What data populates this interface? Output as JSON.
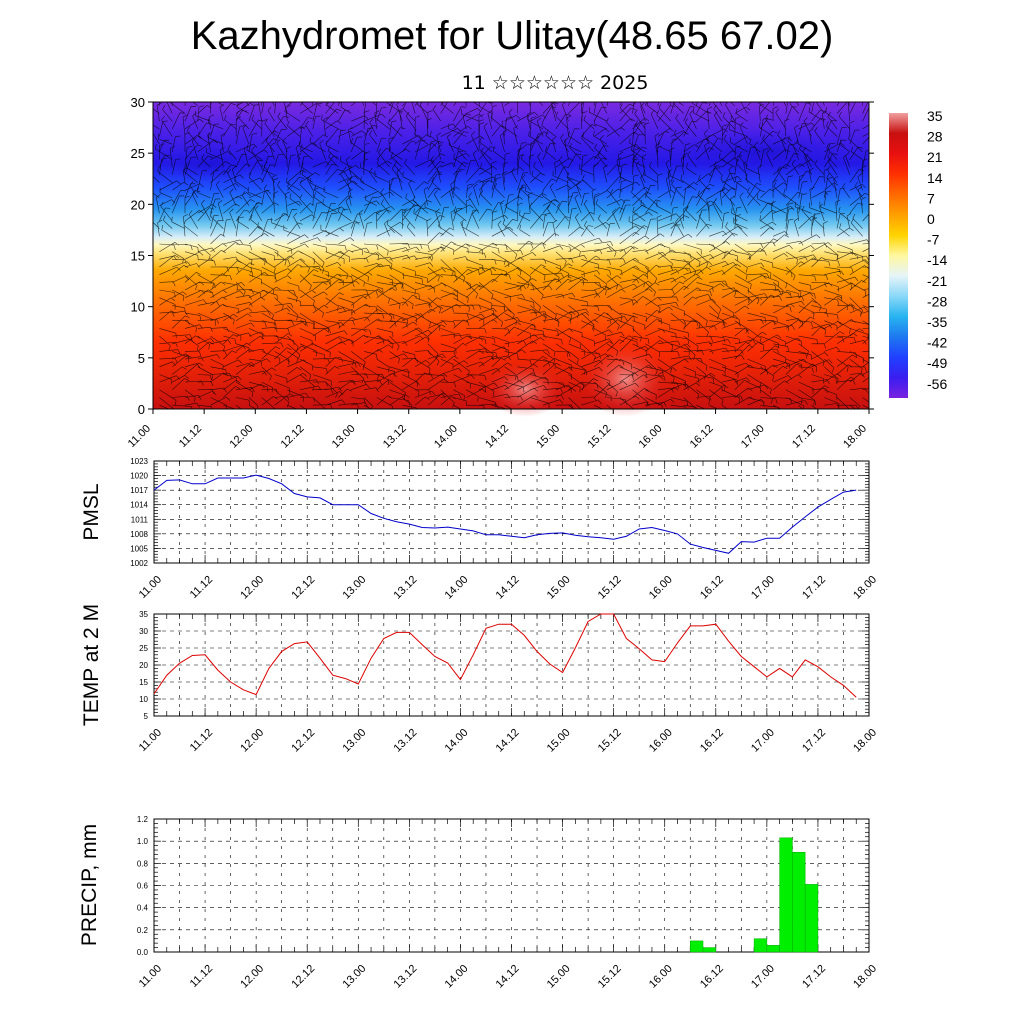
{
  "header": {
    "title": "Kazhydromet for Ulitay(48.65 67.02)",
    "subtitle": "11 ☆☆☆☆☆☆ 2025"
  },
  "colors": {
    "pmsl_line": "#0000cc",
    "temp_line": "#dd0000",
    "precip_bar": "#00ee00",
    "precip_bar_edge": "#00aa00",
    "grid": "#000000"
  },
  "chart_data": [
    {
      "type": "heatmap",
      "name": "cross-section",
      "x_ticks": [
        "11.00",
        "11.12",
        "12.00",
        "12.12",
        "13.00",
        "13.12",
        "14.00",
        "14.12",
        "15.00",
        "15.12",
        "16.00",
        "16.12",
        "17.00",
        "17.12",
        "18.00"
      ],
      "y_ticks": [
        0,
        5,
        10,
        15,
        20,
        25,
        30
      ],
      "ylim": [
        0,
        30
      ],
      "colorbar_labels": [
        "35",
        "28",
        "21",
        "14",
        "7",
        "0",
        "-7",
        "-14",
        "-21",
        "-28",
        "-35",
        "-42",
        "-49",
        "-56"
      ],
      "colormap": [
        "#7a20e0",
        "#3a1ef0",
        "#2040ff",
        "#1e78f0",
        "#28b4f0",
        "#8ad8f8",
        "#e6f4f8",
        "#fff8a0",
        "#ffd400",
        "#ffa000",
        "#ff6a00",
        "#ff3000",
        "#e81010",
        "#c81010",
        "#f0a0a0"
      ]
    },
    {
      "type": "line",
      "name": "pmsl",
      "ylabel": "PMSL",
      "ylim": [
        1002,
        1023
      ],
      "y_ticks": [
        1002,
        1005,
        1008,
        1011,
        1014,
        1017,
        1020,
        1023
      ],
      "x_ticks": [
        "11.00",
        "11.12",
        "12.00",
        "12.12",
        "13.00",
        "13.12",
        "14.00",
        "14.12",
        "15.00",
        "15.12",
        "16.00",
        "16.12",
        "17.00",
        "17.12",
        "18.00"
      ],
      "x_range_hours": [
        0,
        168
      ],
      "x": [
        0,
        3,
        6,
        9,
        12,
        15,
        18,
        21,
        24,
        27,
        30,
        33,
        36,
        39,
        42,
        45,
        48,
        51,
        54,
        57,
        60,
        63,
        66,
        69,
        72,
        75,
        78,
        81,
        84,
        87,
        90,
        93,
        96,
        99,
        102,
        105,
        108,
        111,
        114,
        117,
        120,
        123,
        126,
        129,
        132,
        135,
        138,
        141,
        144,
        147,
        150,
        153,
        156,
        159,
        162,
        165
      ],
      "values": [
        1017,
        1019,
        1019.1,
        1018.3,
        1018.3,
        1019.5,
        1019.5,
        1019.5,
        1020.1,
        1019.4,
        1018.3,
        1016.3,
        1015.6,
        1015.4,
        1014,
        1014,
        1014,
        1012.2,
        1011.2,
        1010.5,
        1010,
        1009.3,
        1009.2,
        1009.4,
        1009,
        1008.6,
        1007.8,
        1007.8,
        1007.5,
        1007.2,
        1007.8,
        1008.1,
        1008.2,
        1007.7,
        1007.4,
        1007.2,
        1006.9,
        1007.5,
        1009,
        1009.3,
        1008.7,
        1008,
        1005.9,
        1005.2,
        1004.6,
        1004,
        1006.4,
        1006.3,
        1007.1,
        1007.1,
        1009.4,
        1011.5,
        1013.5,
        1015.1,
        1016.6,
        1017
      ]
    },
    {
      "type": "line",
      "name": "temp",
      "ylabel": "TEMP at 2 M",
      "ylim": [
        5,
        35
      ],
      "y_ticks": [
        5,
        10,
        15,
        20,
        25,
        30,
        35
      ],
      "x_ticks": [
        "11.00",
        "11.12",
        "12.00",
        "12.12",
        "13.00",
        "13.12",
        "14.00",
        "14.12",
        "15.00",
        "15.12",
        "16.00",
        "16.12",
        "17.00",
        "17.12",
        "18.00"
      ],
      "x_range_hours": [
        0,
        168
      ],
      "x": [
        0,
        3,
        6,
        9,
        12,
        15,
        18,
        21,
        24,
        27,
        30,
        33,
        36,
        39,
        42,
        45,
        48,
        51,
        54,
        57,
        60,
        63,
        66,
        69,
        72,
        75,
        78,
        81,
        84,
        87,
        90,
        93,
        96,
        99,
        102,
        105,
        108,
        111,
        114,
        117,
        120,
        123,
        126,
        129,
        132,
        135,
        138,
        141,
        144,
        147,
        150,
        153,
        156,
        159,
        162,
        165
      ],
      "values": [
        11.5,
        17,
        20.5,
        22.8,
        23,
        18.5,
        15,
        12.7,
        11.3,
        19,
        24,
        26.3,
        26.8,
        22,
        17,
        16,
        14.4,
        22,
        27.8,
        29.6,
        29.6,
        26,
        22.5,
        20.6,
        15.7,
        23,
        30.8,
        32,
        32,
        28.7,
        24,
        20.3,
        17.8,
        25,
        32.8,
        35,
        35,
        27.8,
        24.8,
        21.5,
        21,
        26.5,
        31.5,
        31.5,
        32,
        27,
        22.5,
        19.5,
        16.5,
        19,
        16.5,
        21.5,
        19.5,
        16.5,
        14,
        10.5
      ]
    },
    {
      "type": "bar",
      "name": "precip",
      "ylabel": "PRECIP, mm",
      "ylim": [
        0,
        1.2
      ],
      "y_ticks": [
        "0.0",
        "0.2",
        "0.4",
        "0.6",
        "0.8",
        "1.0",
        "1.2"
      ],
      "x_ticks": [
        "11.00",
        "11.12",
        "12.00",
        "12.12",
        "13.00",
        "13.12",
        "14.00",
        "14.12",
        "15.00",
        "15.12",
        "16.00",
        "16.12",
        "17.00",
        "17.12",
        "18.00"
      ],
      "x_range_hours": [
        0,
        168
      ],
      "bars": [
        {
          "start": 126,
          "end": 129,
          "value": 0.1
        },
        {
          "start": 129,
          "end": 132,
          "value": 0.04
        },
        {
          "start": 141,
          "end": 144,
          "value": 0.12
        },
        {
          "start": 144,
          "end": 147,
          "value": 0.06
        },
        {
          "start": 147,
          "end": 150,
          "value": 1.03
        },
        {
          "start": 150,
          "end": 153,
          "value": 0.9
        },
        {
          "start": 153,
          "end": 156,
          "value": 0.61
        }
      ]
    }
  ]
}
